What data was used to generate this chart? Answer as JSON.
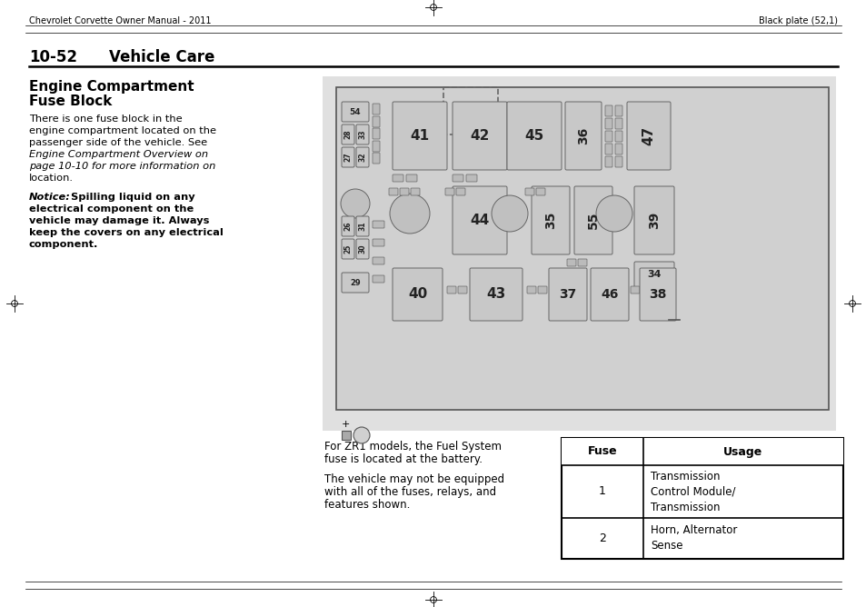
{
  "page_header_left": "Chevrolet Corvette Owner Manual - 2011",
  "page_header_right": "Black plate (52,1)",
  "section_number": "10-52",
  "section_title": "Vehicle Care",
  "heading_line1": "Engine Compartment",
  "heading_line2": "Fuse Block",
  "body_lines": [
    "There is one fuse block in the",
    "engine compartment located on the",
    "passenger side of the vehicle. See",
    "Engine Compartment Overview on",
    "page 10-10 for more information on",
    "location."
  ],
  "body_italic_lines": [
    3,
    4
  ],
  "notice_label": "Notice:",
  "notice_lines": [
    "  Spilling liquid on any",
    "electrical component on the",
    "vehicle may damage it. Always",
    "keep the covers on any electrical",
    "component."
  ],
  "caption1_lines": [
    "For ZR1 models, the Fuel System",
    "fuse is located at the battery."
  ],
  "caption2_lines": [
    "The vehicle may not be equipped",
    "with all of the fuses, relays, and",
    "features shown."
  ],
  "table_header_fuse": "Fuse",
  "table_header_usage": "Usage",
  "table_rows": [
    {
      "fuse": "1",
      "usage": "Transmission\nControl Module/\nTransmission"
    },
    {
      "fuse": "2",
      "usage": "Horn, Alternator\nSense"
    }
  ],
  "page_bg": "#ffffff",
  "diagram_bg": "#e0e0e0",
  "fuseblock_bg": "#d0d0d0",
  "fuseblock_border": "#555555",
  "fuse_face": "#c8c8c8",
  "fuse_edge": "#666666",
  "small_fuse_face": "#bbbbbb",
  "relay_face": "#c0c0c0"
}
